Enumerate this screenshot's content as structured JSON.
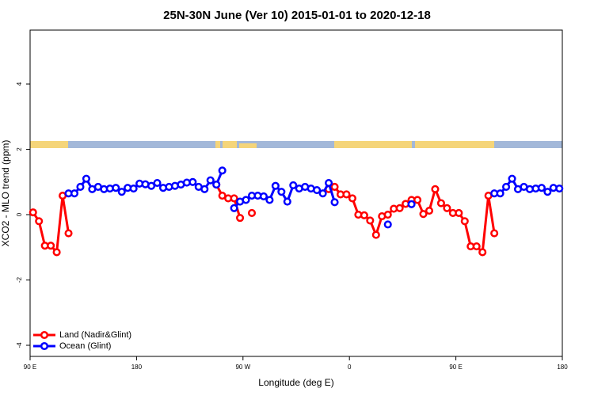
{
  "chart_data": {
    "type": "line",
    "title": "25N-30N June (Ver 10)   2015-01-01 to 2020-12-18",
    "x_label": "Longitude (deg E)",
    "y_label": "XCO2 - MLO trend (ppm)",
    "xlim": [
      90,
      540
    ],
    "ylim": [
      -4.34,
      5.65
    ],
    "xticks": [
      {
        "value": 90,
        "label": "90 E"
      },
      180,
      {
        "value": 270,
        "label": "90 W"
      },
      {
        "value": 360,
        "label": "0"
      },
      {
        "value": 450,
        "label": "90 E"
      },
      {
        "value": 540,
        "label": "180"
      }
    ],
    "yticks": [
      -4,
      -2,
      0,
      2,
      4
    ],
    "legend": "bottom-left",
    "x": [
      92.5,
      97.5,
      102.5,
      107.5,
      112.5,
      117.5,
      122.5,
      127.5,
      132.5,
      137.5,
      142.5,
      147.5,
      152.5,
      157.5,
      162.5,
      167.5,
      172.5,
      177.5,
      182.5,
      187.5,
      192.5,
      197.5,
      202.5,
      207.5,
      212.5,
      217.5,
      222.5,
      227.5,
      232.5,
      237.5,
      242.5,
      247.5,
      252.5,
      257.5,
      262.5,
      267.5,
      272.5,
      277.5,
      282.5,
      287.5,
      292.5,
      297.5,
      302.5,
      307.5,
      312.5,
      317.5,
      322.5,
      327.5,
      332.5,
      337.5,
      342.5,
      347.5,
      352.5,
      357.5,
      362.5,
      367.5,
      372.5,
      377.5,
      382.5,
      387.5,
      392.5,
      397.5,
      402.5,
      407.5,
      412.5,
      417.5,
      422.5,
      427.5,
      432.5,
      437.5,
      442.5,
      447.5,
      452.5,
      457.5,
      462.5,
      467.5,
      472.5,
      477.5,
      482.5,
      487.5,
      492.5,
      497.5,
      502.5,
      507.5,
      512.5,
      517.5,
      522.5,
      527.5,
      532.5,
      537.5
    ],
    "series": [
      {
        "name": "Land (Nadir&Glint)",
        "color": "#ff0000",
        "values": [
          0.07,
          -0.2,
          -0.95,
          -0.95,
          -1.15,
          0.58,
          -0.57,
          null,
          null,
          null,
          null,
          null,
          null,
          null,
          null,
          null,
          null,
          null,
          null,
          null,
          null,
          null,
          null,
          null,
          null,
          null,
          null,
          null,
          null,
          null,
          null,
          0.92,
          0.58,
          0.5,
          0.5,
          -0.1,
          null,
          0.05,
          null,
          null,
          null,
          null,
          null,
          null,
          null,
          null,
          null,
          null,
          null,
          null,
          0.78,
          0.85,
          0.62,
          0.62,
          0.5,
          0.0,
          -0.02,
          -0.18,
          -0.62,
          -0.05,
          0.0,
          0.18,
          0.2,
          0.33,
          0.45,
          0.45,
          0.02,
          0.12,
          0.78,
          0.35,
          0.2,
          0.05,
          0.05,
          -0.2,
          -0.97,
          -0.97,
          -1.15,
          0.58,
          -0.57,
          null,
          null,
          null,
          null,
          null,
          null,
          null,
          null,
          null,
          null,
          null
        ]
      },
      {
        "name": "Ocean (Glint)",
        "color": "#0000ff",
        "values": [
          null,
          null,
          null,
          null,
          null,
          null,
          0.65,
          0.65,
          0.85,
          1.1,
          0.78,
          0.85,
          0.78,
          0.8,
          0.82,
          0.7,
          0.82,
          0.8,
          0.95,
          0.93,
          0.88,
          0.97,
          0.82,
          0.85,
          0.88,
          0.92,
          0.98,
          1.0,
          0.85,
          0.78,
          1.05,
          0.92,
          1.35,
          null,
          0.2,
          0.4,
          0.45,
          0.58,
          0.58,
          0.56,
          0.45,
          0.88,
          0.7,
          0.4,
          0.9,
          0.8,
          0.85,
          0.8,
          0.75,
          0.65,
          0.97,
          0.38,
          null,
          null,
          null,
          null,
          null,
          null,
          null,
          null,
          -0.3,
          null,
          null,
          null,
          0.32,
          null,
          null,
          null,
          null,
          null,
          null,
          null,
          null,
          null,
          null,
          null,
          null,
          null,
          0.65,
          0.65,
          0.85,
          1.1,
          0.78,
          0.85,
          0.78,
          0.8,
          0.82,
          0.7,
          0.82,
          0.8
        ]
      }
    ]
  }
}
